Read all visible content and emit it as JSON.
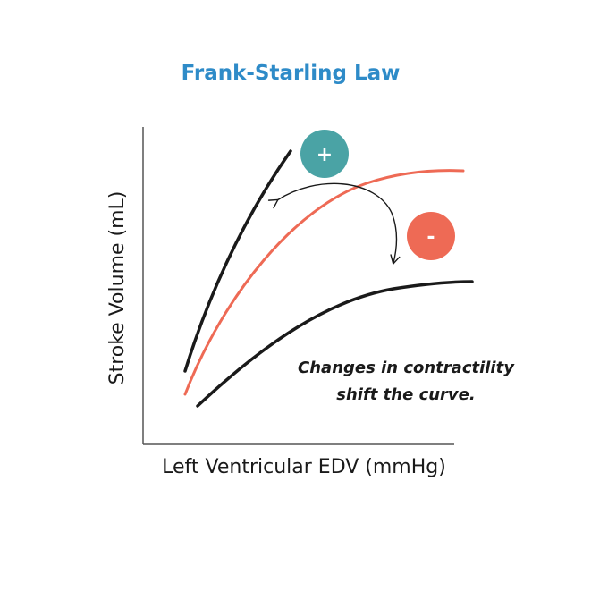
{
  "title": "Frank-Starling Law",
  "axes": {
    "x_label": "Left Ventricular EDV (mmHg)",
    "y_label": "Stroke Volume (mL)"
  },
  "annotation": {
    "line1": "Changes in contractility",
    "line2": "shift the curve."
  },
  "badges": {
    "increase": {
      "symbol": "+",
      "color": "#4aa3a5"
    },
    "decrease": {
      "symbol": "-",
      "color": "#ee6a55"
    }
  },
  "curves": [
    {
      "role": "increased-contractility",
      "color": "#1a1a1a"
    },
    {
      "role": "normal",
      "color": "#ee6a55"
    },
    {
      "role": "decreased-contractility",
      "color": "#1a1a1a"
    }
  ],
  "colors": {
    "title": "#2e8bc8",
    "axis": "#555555",
    "arrow": "#1a1a1a"
  }
}
